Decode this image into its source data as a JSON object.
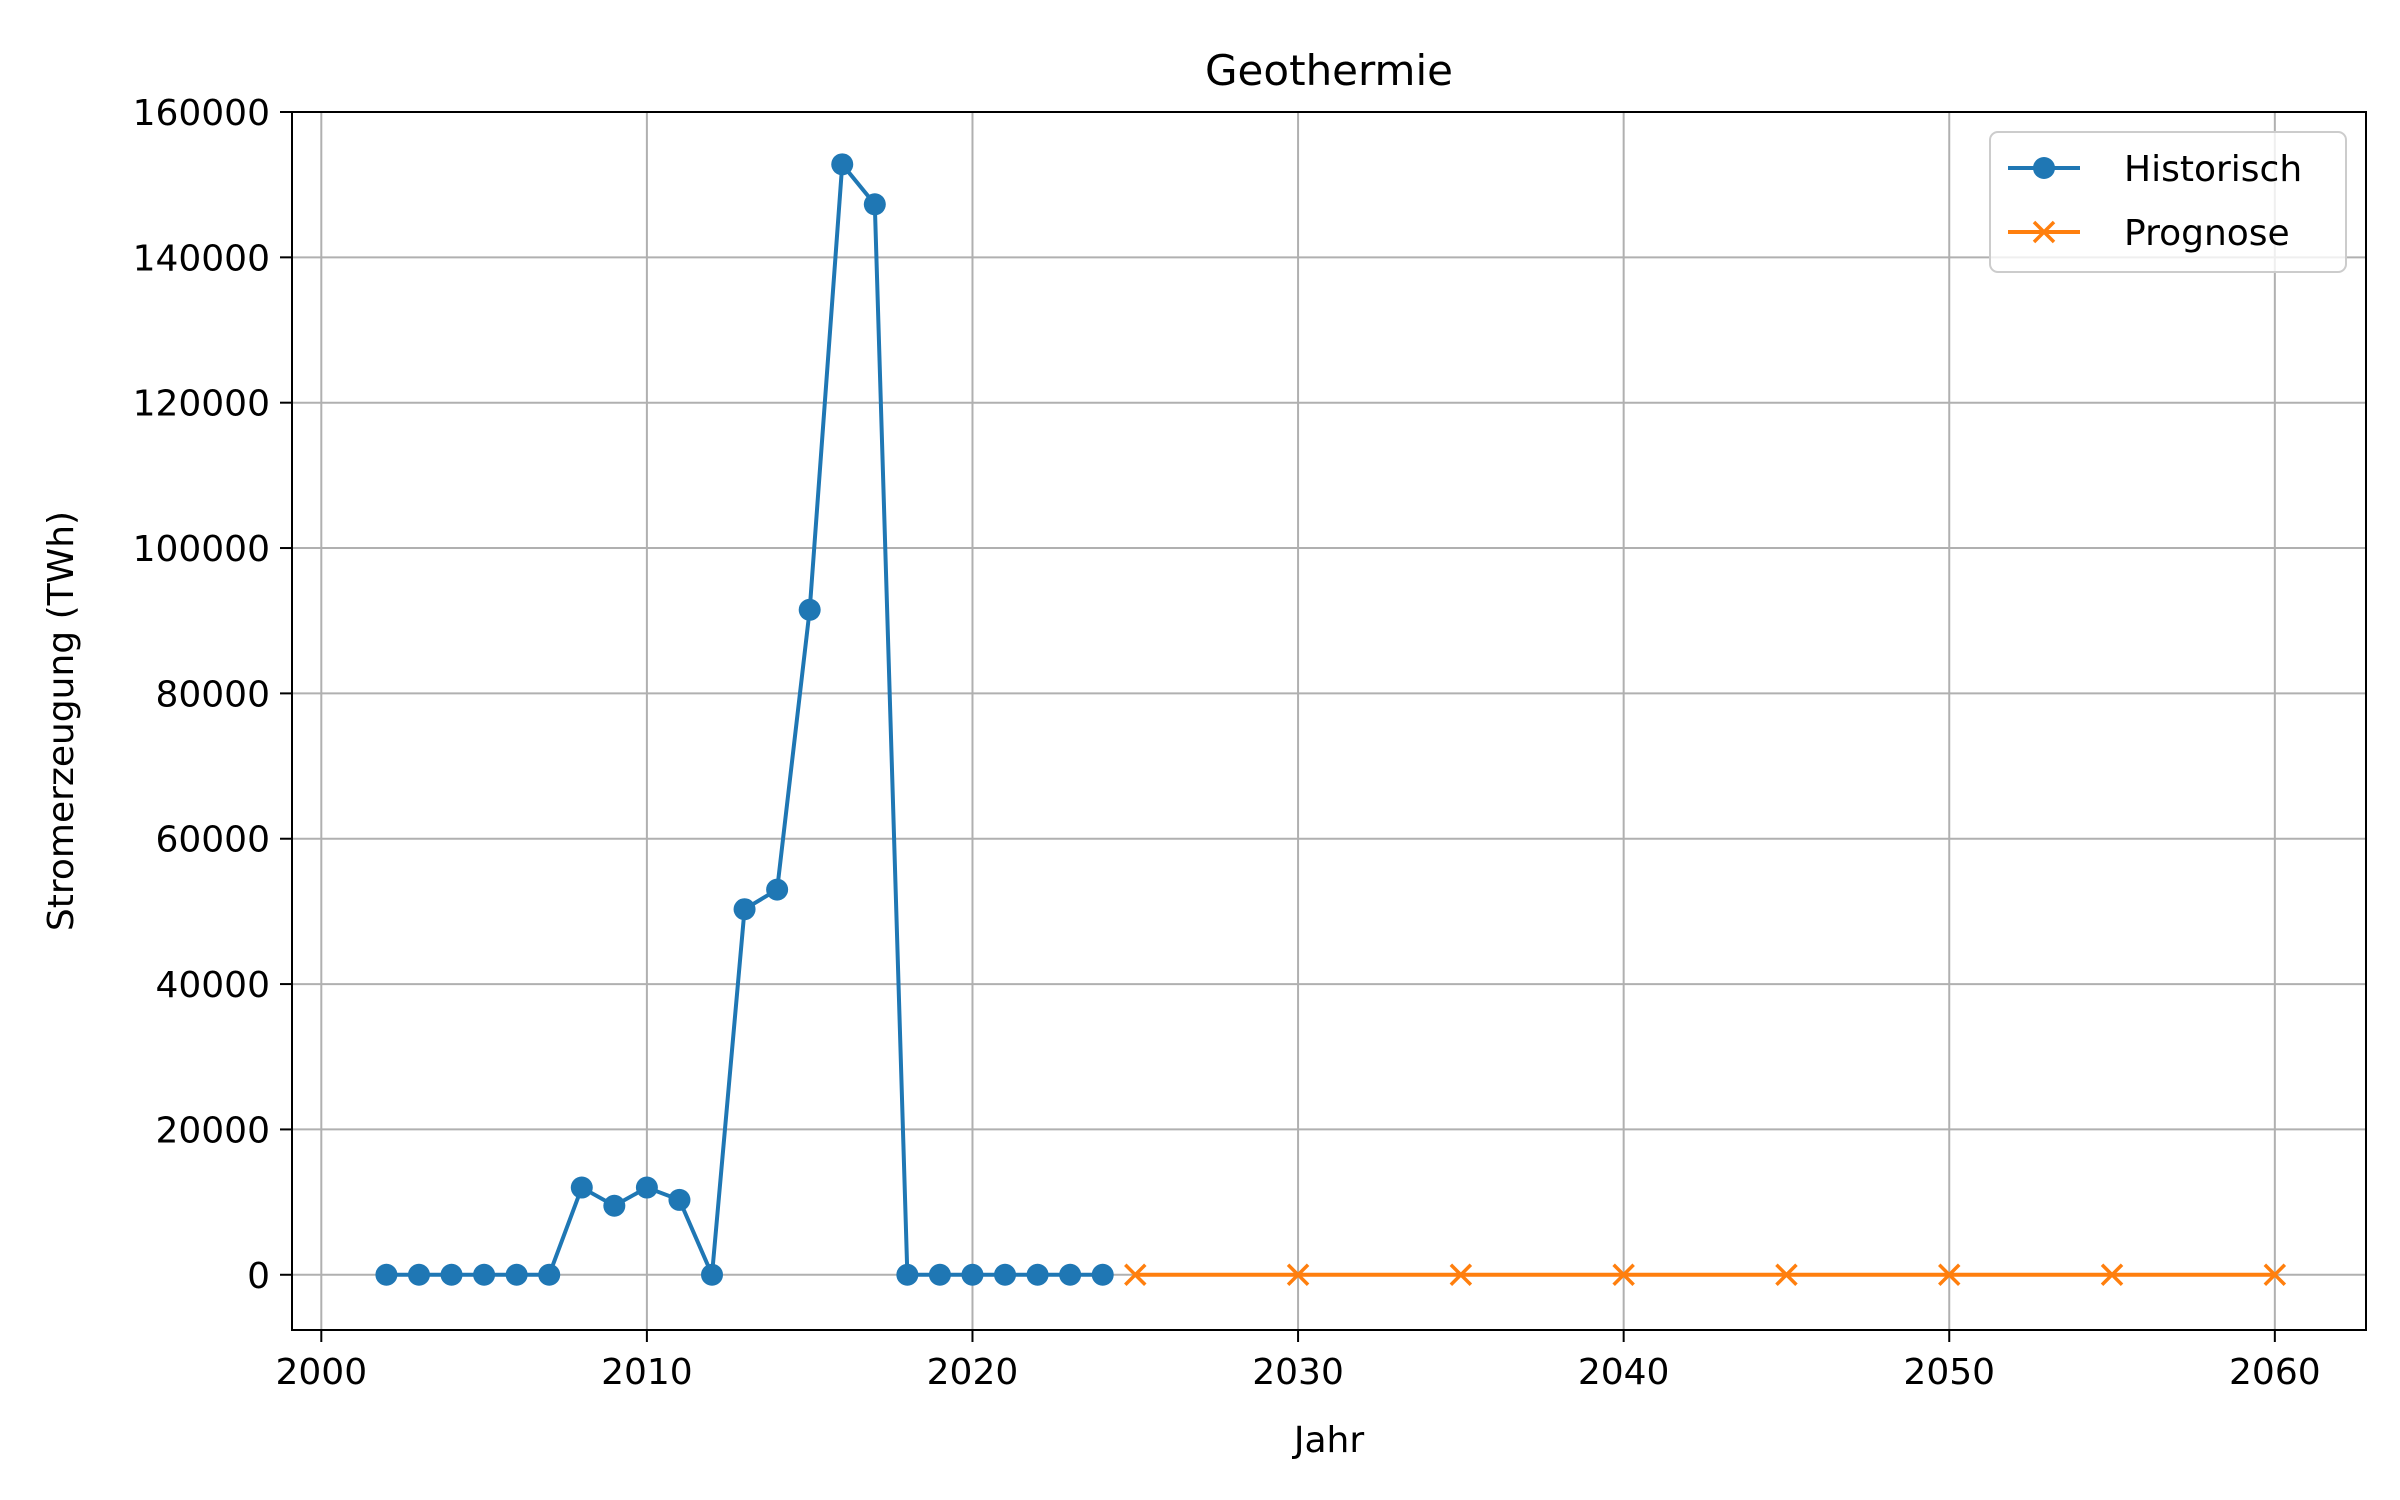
{
  "chart_data": {
    "type": "line",
    "title": "Geothermie",
    "xlabel": "Jahr",
    "ylabel": "Stromerzeugung (TWh)",
    "xlim": [
      1999.1,
      2062.8
    ],
    "ylim": [
      -7600,
      160000
    ],
    "xticks": [
      2000,
      2010,
      2020,
      2030,
      2040,
      2050,
      2060
    ],
    "yticks": [
      0,
      20000,
      40000,
      60000,
      80000,
      100000,
      120000,
      140000,
      160000
    ],
    "grid": true,
    "legend_position": "top-right",
    "series": [
      {
        "name": "Historisch",
        "color": "#1f77b4",
        "marker": "circle",
        "x": [
          2002,
          2003,
          2004,
          2005,
          2006,
          2007,
          2008,
          2009,
          2010,
          2011,
          2012,
          2013,
          2014,
          2015,
          2016,
          2017,
          2018,
          2019,
          2020,
          2021,
          2022,
          2023,
          2024
        ],
        "y": [
          0,
          0,
          0,
          0,
          0,
          0,
          12000,
          9500,
          12000,
          10300,
          0,
          50300,
          53000,
          91500,
          152800,
          147300,
          0,
          0,
          0,
          0,
          0,
          0,
          0
        ]
      },
      {
        "name": "Prognose",
        "color": "#ff7f0e",
        "marker": "x",
        "x": [
          2025,
          2030,
          2035,
          2040,
          2045,
          2050,
          2055,
          2060
        ],
        "y": [
          0,
          0,
          0,
          0,
          0,
          0,
          0,
          0
        ]
      }
    ]
  }
}
